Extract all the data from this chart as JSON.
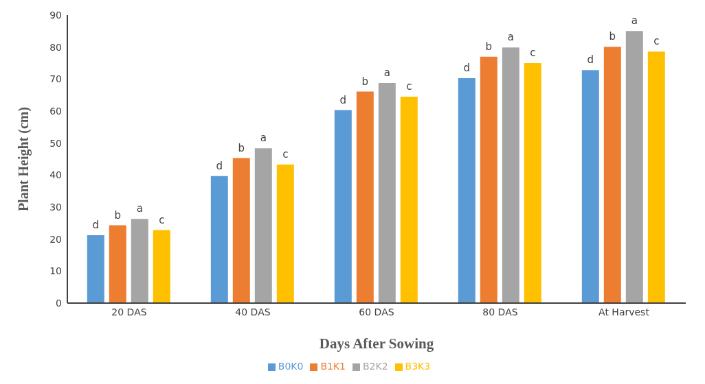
{
  "chart_data": {
    "type": "bar",
    "xlabel": "Days After Sowing",
    "ylabel": "Plant Height (cm)",
    "categories": [
      "20 DAS",
      "40 DAS",
      "60 DAS",
      "80 DAS",
      "At Harvest"
    ],
    "series": [
      {
        "name": "B0K0",
        "color": "#5b9bd5",
        "values": [
          21.2,
          39.7,
          60.3,
          70.3,
          72.8
        ],
        "value_labels": [
          "d",
          "d",
          "d",
          "d",
          "d"
        ]
      },
      {
        "name": "B1K1",
        "color": "#ed7d31",
        "values": [
          24.3,
          45.3,
          66.1,
          77,
          80.1
        ],
        "value_labels": [
          "b",
          "b",
          "b",
          "b",
          "b"
        ]
      },
      {
        "name": "B2K2",
        "color": "#a5a5a5",
        "values": [
          26.3,
          48.4,
          68.8,
          79.9,
          85
        ],
        "value_labels": [
          "a",
          "a",
          "a",
          "a",
          "a"
        ]
      },
      {
        "name": "B3K3",
        "color": "#ffc000",
        "values": [
          22.8,
          43.3,
          64.5,
          75,
          78.6
        ],
        "value_labels": [
          "c",
          "c",
          "c",
          "c",
          "c"
        ]
      }
    ],
    "ylim": [
      0,
      90
    ],
    "yticks": [
      0,
      10,
      20,
      30,
      40,
      50,
      60,
      70,
      80,
      90
    ],
    "grid": false,
    "legend": "bottom"
  }
}
